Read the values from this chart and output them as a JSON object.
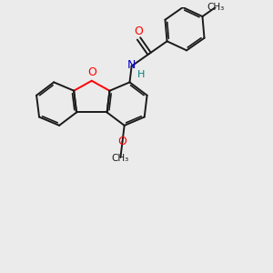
{
  "background_color": "#ebebeb",
  "bond_color": "#1a1a1a",
  "bond_width": 1.4,
  "O_color": "#ff0000",
  "N_color": "#0000cc",
  "H_color": "#008080",
  "figsize": [
    3.0,
    3.0
  ],
  "dpi": 100,
  "xlim": [
    0,
    10
  ],
  "ylim": [
    0,
    10
  ]
}
